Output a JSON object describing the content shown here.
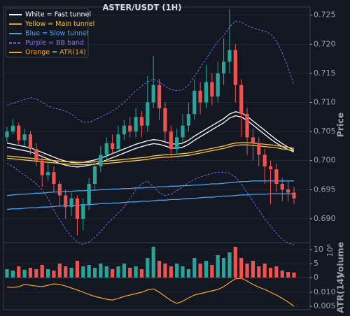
{
  "chart_data": [
    {
      "type": "candlestick",
      "title": "ASTER/USDT (1H)",
      "ylabel": "Price",
      "ylim": [
        0.6859,
        0.7264
      ],
      "yticks": [
        {
          "value": 0.69,
          "label": "0.690"
        },
        0.695,
        {
          "value": 0.7,
          "label": "0.700"
        },
        0.705,
        {
          "value": 0.71,
          "label": "0.710"
        },
        0.715,
        {
          "value": 0.72,
          "label": "0.720"
        },
        0.725
      ],
      "grid": true,
      "up_color": "#26a69a",
      "down_color": "#ef5350",
      "legend": "upper left",
      "open": [
        0.704,
        0.705,
        0.706,
        0.7035,
        0.7045,
        0.702,
        0.7,
        0.6975,
        0.698,
        0.696,
        0.694,
        0.692,
        0.6935,
        0.69,
        0.6925,
        0.696,
        0.699,
        0.701,
        0.703,
        0.702,
        0.7045,
        0.706,
        0.705,
        0.7075,
        0.706,
        0.71,
        0.713,
        0.709,
        0.705,
        0.702,
        0.704,
        0.706,
        0.708,
        0.712,
        0.71,
        0.7135,
        0.711,
        0.715,
        0.717,
        0.719,
        0.713,
        0.708,
        0.704,
        0.703,
        0.701,
        0.699,
        0.6985,
        0.696,
        0.695,
        0.6945
      ],
      "high": [
        0.7058,
        0.7072,
        0.7065,
        0.7055,
        0.705,
        0.703,
        0.701,
        0.6995,
        0.699,
        0.6965,
        0.695,
        0.6945,
        0.694,
        0.6935,
        0.697,
        0.7,
        0.7025,
        0.704,
        0.7045,
        0.706,
        0.707,
        0.7075,
        0.709,
        0.7085,
        0.7145,
        0.718,
        0.714,
        0.71,
        0.706,
        0.7055,
        0.708,
        0.71,
        0.714,
        0.7135,
        0.7165,
        0.715,
        0.717,
        0.721,
        0.726,
        0.72,
        0.714,
        0.709,
        0.7055,
        0.704,
        0.702,
        0.7,
        0.6995,
        0.697,
        0.6965,
        0.6955
      ],
      "low": [
        0.7032,
        0.7045,
        0.7028,
        0.7025,
        0.701,
        0.699,
        0.6955,
        0.6965,
        0.6945,
        0.692,
        0.69,
        0.6905,
        0.6872,
        0.688,
        0.6915,
        0.695,
        0.698,
        0.7,
        0.701,
        0.7015,
        0.7035,
        0.704,
        0.704,
        0.704,
        0.705,
        0.709,
        0.707,
        0.703,
        0.7005,
        0.701,
        0.703,
        0.705,
        0.707,
        0.708,
        0.709,
        0.7095,
        0.71,
        0.713,
        0.715,
        0.71,
        0.704,
        0.701,
        0.7,
        0.699,
        0.696,
        0.6925,
        0.6945,
        0.693,
        0.693,
        0.6925
      ],
      "close": [
        0.705,
        0.706,
        0.7035,
        0.7045,
        0.702,
        0.7,
        0.6975,
        0.698,
        0.696,
        0.694,
        0.692,
        0.6935,
        0.69,
        0.6925,
        0.696,
        0.699,
        0.701,
        0.703,
        0.702,
        0.7045,
        0.706,
        0.705,
        0.7075,
        0.706,
        0.71,
        0.713,
        0.709,
        0.705,
        0.702,
        0.704,
        0.706,
        0.708,
        0.712,
        0.71,
        0.7135,
        0.711,
        0.715,
        0.717,
        0.719,
        0.713,
        0.708,
        0.704,
        0.703,
        0.701,
        0.699,
        0.6985,
        0.696,
        0.695,
        0.6945,
        0.6935
      ],
      "overlays": [
        {
          "name": "White = Fast tunnel",
          "color": "#ffffff",
          "dashed": false,
          "lines": [
            [
              0.703,
              0.7028,
              0.7026,
              0.7024,
              0.7022,
              0.7018,
              0.7014,
              0.701,
              0.7006,
              0.7002,
              0.6999,
              0.6997,
              0.6996,
              0.6997,
              0.6999,
              0.7001,
              0.7004,
              0.7008,
              0.7012,
              0.7016,
              0.702,
              0.7024,
              0.7028,
              0.7031,
              0.7034,
              0.7036,
              0.7035,
              0.7032,
              0.7029,
              0.7028,
              0.703,
              0.7035,
              0.7042,
              0.7048,
              0.7054,
              0.706,
              0.7066,
              0.7072,
              0.708,
              0.7084,
              0.7082,
              0.7076,
              0.7068,
              0.706,
              0.7052,
              0.7044,
              0.7036,
              0.7029,
              0.7023,
              0.7018
            ],
            [
              0.7023,
              0.7021,
              0.7019,
              0.7017,
              0.7015,
              0.7011,
              0.7007,
              0.7003,
              0.6999,
              0.6995,
              0.6992,
              0.699,
              0.6989,
              0.699,
              0.6992,
              0.6994,
              0.6997,
              0.7001,
              0.7005,
              0.7009,
              0.7013,
              0.7017,
              0.7021,
              0.7024,
              0.7027,
              0.7029,
              0.7028,
              0.7025,
              0.7022,
              0.7021,
              0.7023,
              0.7028,
              0.7035,
              0.7041,
              0.7047,
              0.7053,
              0.7059,
              0.7065,
              0.7073,
              0.7077,
              0.7075,
              0.7069,
              0.7061,
              0.7053,
              0.7045,
              0.7037,
              0.703,
              0.7024,
              0.7019,
              0.7015
            ]
          ]
        },
        {
          "name": "Yellow = Main tunnel",
          "color": "#f6c343",
          "dashed": false,
          "lines": [
            [
              0.7008,
              0.7007,
              0.7006,
              0.7005,
              0.7004,
              0.7003,
              0.7002,
              0.7001,
              0.7,
              0.6999,
              0.6998,
              0.6998,
              0.6997,
              0.6997,
              0.6997,
              0.6998,
              0.6998,
              0.6999,
              0.7,
              0.7001,
              0.7002,
              0.7003,
              0.7004,
              0.7005,
              0.7006,
              0.7008,
              0.7009,
              0.701,
              0.701,
              0.7011,
              0.7012,
              0.7013,
              0.7015,
              0.7017,
              0.7019,
              0.7021,
              0.7023,
              0.7025,
              0.7028,
              0.703,
              0.7031,
              0.7031,
              0.703,
              0.7029,
              0.7028,
              0.7027,
              0.7026,
              0.7024,
              0.7023,
              0.7021
            ],
            [
              0.7004,
              0.7003,
              0.7002,
              0.7001,
              0.7,
              0.6999,
              0.6998,
              0.6997,
              0.6996,
              0.6995,
              0.6994,
              0.6994,
              0.6993,
              0.6993,
              0.6993,
              0.6994,
              0.6994,
              0.6995,
              0.6996,
              0.6997,
              0.6998,
              0.6999,
              0.7,
              0.7001,
              0.7002,
              0.7004,
              0.7005,
              0.7006,
              0.7006,
              0.7007,
              0.7008,
              0.7009,
              0.7011,
              0.7013,
              0.7015,
              0.7017,
              0.7019,
              0.7021,
              0.7024,
              0.7026,
              0.7027,
              0.7027,
              0.7026,
              0.7025,
              0.7024,
              0.7023,
              0.7022,
              0.702,
              0.7019,
              0.7017
            ]
          ]
        },
        {
          "name": "Blue = Slow tunnel",
          "color": "#4aa3f0",
          "dashed": false,
          "lines": [
            [
              0.694,
              0.6941,
              0.6942,
              0.6942,
              0.6943,
              0.6944,
              0.6944,
              0.6945,
              0.6946,
              0.6946,
              0.6947,
              0.6947,
              0.6948,
              0.6948,
              0.6949,
              0.6949,
              0.695,
              0.695,
              0.6951,
              0.6951,
              0.6952,
              0.6952,
              0.6953,
              0.6953,
              0.6954,
              0.6954,
              0.6955,
              0.6955,
              0.6956,
              0.6956,
              0.6957,
              0.6957,
              0.6958,
              0.6958,
              0.6959,
              0.696,
              0.696,
              0.6961,
              0.6962,
              0.6963,
              0.6964,
              0.6964,
              0.6965,
              0.6965,
              0.6965,
              0.6965,
              0.6965,
              0.6965,
              0.6965,
              0.6965
            ],
            [
              0.6916,
              0.6917,
              0.6917,
              0.6918,
              0.6919,
              0.6919,
              0.692,
              0.692,
              0.6921,
              0.6922,
              0.6922,
              0.6923,
              0.6923,
              0.6924,
              0.6924,
              0.6925,
              0.6926,
              0.6926,
              0.6927,
              0.6927,
              0.6928,
              0.6929,
              0.6929,
              0.693,
              0.693,
              0.6931,
              0.6932,
              0.6932,
              0.6933,
              0.6933,
              0.6934,
              0.6935,
              0.6935,
              0.6936,
              0.6937,
              0.6937,
              0.6938,
              0.6939,
              0.6939,
              0.694,
              0.6941,
              0.6941,
              0.6942,
              0.6942,
              0.6942,
              0.6943,
              0.6943,
              0.6943,
              0.6943,
              0.6943
            ]
          ]
        },
        {
          "name": "Purple = BB band",
          "color": "#8b6cf0",
          "dashed": true,
          "lines": [
            [
              0.7095,
              0.7098,
              0.7102,
              0.7105,
              0.7108,
              0.7106,
              0.71,
              0.7094,
              0.709,
              0.7088,
              0.7085,
              0.708,
              0.7072,
              0.7066,
              0.7066,
              0.707,
              0.7075,
              0.708,
              0.7085,
              0.7092,
              0.71,
              0.711,
              0.712,
              0.7128,
              0.7135,
              0.714,
              0.7135,
              0.7128,
              0.7122,
              0.712,
              0.7122,
              0.713,
              0.7145,
              0.716,
              0.7175,
              0.719,
              0.7205,
              0.7215,
              0.723,
              0.724,
              0.7238,
              0.7232,
              0.7228,
              0.7225,
              0.7222,
              0.7218,
              0.7205,
              0.7185,
              0.716,
              0.713
            ],
            [
              0.6995,
              0.699,
              0.6982,
              0.6975,
              0.6968,
              0.696,
              0.695,
              0.6935,
              0.6915,
              0.6898,
              0.6882,
              0.687,
              0.686,
              0.6856,
              0.686,
              0.6868,
              0.6878,
              0.689,
              0.69,
              0.691,
              0.692,
              0.6935,
              0.695,
              0.696,
              0.6965,
              0.6955,
              0.6945,
              0.694,
              0.6942,
              0.6948,
              0.6955,
              0.6962,
              0.6968,
              0.6972,
              0.6975,
              0.6978,
              0.698,
              0.698,
              0.6978,
              0.6972,
              0.696,
              0.6945,
              0.693,
              0.6915,
              0.69,
              0.6888,
              0.6875,
              0.6865,
              0.6858,
              0.6855
            ]
          ]
        }
      ]
    },
    {
      "type": "bar",
      "ylabel": "Volume",
      "scale_label": "10⁶",
      "ylim": [
        0,
        12.5
      ],
      "yticks": [
        0,
        5,
        10
      ],
      "grid": true,
      "up_color": "#26a69a",
      "down_color": "#ef5350",
      "values": [
        3,
        2.5,
        4,
        2.8,
        3.5,
        3,
        4.5,
        3,
        2.5,
        5,
        4,
        3.5,
        6,
        4,
        4.5,
        3.5,
        5,
        4,
        3,
        4,
        5,
        3.5,
        4,
        3,
        7,
        11,
        6,
        5,
        4,
        5,
        4,
        3,
        7,
        5,
        6,
        4.5,
        8,
        7,
        9,
        11,
        7,
        5,
        6,
        4,
        5,
        3.5,
        4,
        2.5,
        2,
        1.8
      ]
    },
    {
      "type": "line",
      "ylabel": "ATR(14)",
      "ylim": [
        0.00375,
        0.01525
      ],
      "yticks": [
        0.005,
        {
          "value": 0.01,
          "label": "0.010"
        }
      ],
      "grid": true,
      "series": [
        {
          "name": "Orange = ATR(14)",
          "color": "#f5a623",
          "values": [
            0.0118,
            0.0117,
            0.012,
            0.0128,
            0.0125,
            0.0122,
            0.012,
            0.0125,
            0.013,
            0.0128,
            0.0122,
            0.0115,
            0.0108,
            0.01,
            0.0092,
            0.0085,
            0.008,
            0.0075,
            0.0072,
            0.0078,
            0.0085,
            0.009,
            0.0095,
            0.01,
            0.0108,
            0.0112,
            0.01,
            0.0085,
            0.007,
            0.006,
            0.0068,
            0.008,
            0.009,
            0.0095,
            0.01,
            0.0105,
            0.011,
            0.012,
            0.0135,
            0.0148,
            0.015,
            0.014,
            0.0128,
            0.0118,
            0.011,
            0.01,
            0.009,
            0.0078,
            0.0065,
            0.005
          ]
        }
      ]
    }
  ]
}
